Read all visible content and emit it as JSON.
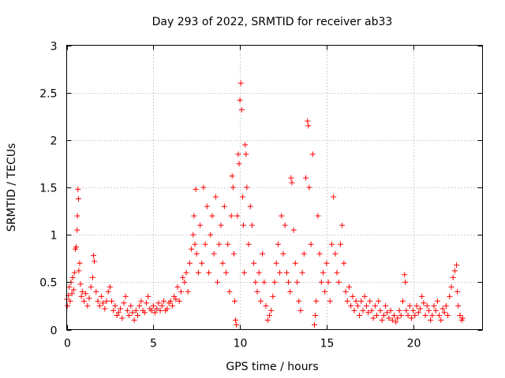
{
  "chart_data": {
    "type": "scatter",
    "title": "Day 293 of 2022, SRMTID for receiver ab33",
    "xlabel": "GPS time / hours",
    "ylabel": "SRMTID / TECUs",
    "xlim": [
      0,
      24
    ],
    "ylim": [
      0,
      3
    ],
    "xticks": [
      0,
      5,
      10,
      15,
      20
    ],
    "yticks": [
      0,
      0.5,
      1,
      1.5,
      2,
      2.5,
      3
    ],
    "xtick_labels": [
      "0",
      "5",
      "10",
      "15",
      "20"
    ],
    "ytick_labels": [
      "0",
      "0.5",
      "1",
      "1.5",
      "2",
      "2.5",
      "3"
    ],
    "grid": true,
    "marker": "+",
    "series": [
      {
        "name": "SRMTID",
        "color": "#ff0000",
        "points": [
          [
            0.0,
            0.32
          ],
          [
            0.05,
            0.25
          ],
          [
            0.1,
            0.36
          ],
          [
            0.15,
            0.45
          ],
          [
            0.2,
            0.3
          ],
          [
            0.25,
            0.5
          ],
          [
            0.3,
            0.38
          ],
          [
            0.35,
            0.55
          ],
          [
            0.4,
            0.42
          ],
          [
            0.45,
            0.6
          ],
          [
            0.5,
            0.85
          ],
          [
            0.55,
            0.87
          ],
          [
            0.6,
            1.05
          ],
          [
            0.62,
            1.2
          ],
          [
            0.65,
            1.48
          ],
          [
            0.68,
            1.38
          ],
          [
            0.7,
            0.62
          ],
          [
            0.75,
            0.7
          ],
          [
            0.8,
            0.48
          ],
          [
            0.85,
            0.35
          ],
          [
            0.9,
            0.4
          ],
          [
            1.0,
            0.3
          ],
          [
            1.1,
            0.38
          ],
          [
            1.2,
            0.25
          ],
          [
            1.3,
            0.33
          ],
          [
            1.4,
            0.45
          ],
          [
            1.5,
            0.55
          ],
          [
            1.55,
            0.78
          ],
          [
            1.6,
            0.72
          ],
          [
            1.7,
            0.4
          ],
          [
            1.8,
            0.3
          ],
          [
            1.9,
            0.25
          ],
          [
            2.0,
            0.35
          ],
          [
            2.1,
            0.28
          ],
          [
            2.2,
            0.22
          ],
          [
            2.3,
            0.3
          ],
          [
            2.4,
            0.4
          ],
          [
            2.5,
            0.45
          ],
          [
            2.6,
            0.3
          ],
          [
            2.7,
            0.2
          ],
          [
            2.8,
            0.25
          ],
          [
            2.9,
            0.15
          ],
          [
            3.0,
            0.18
          ],
          [
            3.1,
            0.22
          ],
          [
            3.2,
            0.12
          ],
          [
            3.3,
            0.28
          ],
          [
            3.4,
            0.35
          ],
          [
            3.5,
            0.2
          ],
          [
            3.6,
            0.15
          ],
          [
            3.7,
            0.25
          ],
          [
            3.8,
            0.18
          ],
          [
            3.9,
            0.1
          ],
          [
            4.0,
            0.2
          ],
          [
            4.1,
            0.15
          ],
          [
            4.2,
            0.25
          ],
          [
            4.3,
            0.3
          ],
          [
            4.4,
            0.2
          ],
          [
            4.5,
            0.18
          ],
          [
            4.6,
            0.28
          ],
          [
            4.7,
            0.35
          ],
          [
            4.8,
            0.22
          ],
          [
            4.9,
            0.2
          ],
          [
            5.0,
            0.25
          ],
          [
            5.1,
            0.18
          ],
          [
            5.2,
            0.22
          ],
          [
            5.3,
            0.28
          ],
          [
            5.4,
            0.2
          ],
          [
            5.5,
            0.25
          ],
          [
            5.6,
            0.3
          ],
          [
            5.7,
            0.2
          ],
          [
            5.8,
            0.22
          ],
          [
            5.9,
            0.28
          ],
          [
            6.0,
            0.3
          ],
          [
            6.1,
            0.25
          ],
          [
            6.2,
            0.35
          ],
          [
            6.3,
            0.32
          ],
          [
            6.4,
            0.45
          ],
          [
            6.5,
            0.3
          ],
          [
            6.6,
            0.4
          ],
          [
            6.7,
            0.55
          ],
          [
            6.8,
            0.5
          ],
          [
            6.9,
            0.6
          ],
          [
            7.0,
            0.4
          ],
          [
            7.1,
            0.7
          ],
          [
            7.2,
            0.85
          ],
          [
            7.3,
            1.0
          ],
          [
            7.35,
            1.2
          ],
          [
            7.4,
            0.9
          ],
          [
            7.45,
            1.48
          ],
          [
            7.5,
            0.8
          ],
          [
            7.6,
            0.6
          ],
          [
            7.7,
            1.1
          ],
          [
            7.8,
            0.7
          ],
          [
            7.9,
            1.5
          ],
          [
            8.0,
            0.9
          ],
          [
            8.1,
            1.3
          ],
          [
            8.2,
            0.6
          ],
          [
            8.3,
            1.0
          ],
          [
            8.4,
            1.2
          ],
          [
            8.5,
            0.8
          ],
          [
            8.6,
            1.4
          ],
          [
            8.7,
            0.5
          ],
          [
            8.8,
            0.9
          ],
          [
            8.9,
            1.1
          ],
          [
            9.0,
            0.7
          ],
          [
            9.1,
            1.3
          ],
          [
            9.2,
            0.6
          ],
          [
            9.3,
            0.9
          ],
          [
            9.4,
            0.4
          ],
          [
            9.5,
            1.2
          ],
          [
            9.55,
            1.62
          ],
          [
            9.6,
            1.5
          ],
          [
            9.65,
            0.8
          ],
          [
            9.7,
            0.3
          ],
          [
            9.75,
            0.1
          ],
          [
            9.8,
            0.05
          ],
          [
            9.85,
            1.2
          ],
          [
            9.9,
            1.85
          ],
          [
            9.95,
            1.75
          ],
          [
            10.0,
            2.42
          ],
          [
            10.05,
            2.6
          ],
          [
            10.1,
            2.32
          ],
          [
            10.15,
            1.4
          ],
          [
            10.2,
            1.1
          ],
          [
            10.25,
            0.6
          ],
          [
            10.3,
            1.95
          ],
          [
            10.35,
            1.85
          ],
          [
            10.4,
            1.5
          ],
          [
            10.5,
            0.9
          ],
          [
            10.6,
            1.3
          ],
          [
            10.7,
            1.1
          ],
          [
            10.8,
            0.7
          ],
          [
            10.9,
            0.5
          ],
          [
            11.0,
            0.4
          ],
          [
            11.1,
            0.6
          ],
          [
            11.2,
            0.3
          ],
          [
            11.3,
            0.8
          ],
          [
            11.4,
            0.5
          ],
          [
            11.5,
            0.25
          ],
          [
            11.6,
            0.1
          ],
          [
            11.7,
            0.15
          ],
          [
            11.8,
            0.2
          ],
          [
            11.9,
            0.35
          ],
          [
            12.0,
            0.5
          ],
          [
            12.1,
            0.7
          ],
          [
            12.2,
            0.9
          ],
          [
            12.3,
            0.6
          ],
          [
            12.4,
            1.2
          ],
          [
            12.5,
            0.8
          ],
          [
            12.6,
            1.1
          ],
          [
            12.7,
            0.6
          ],
          [
            12.8,
            0.5
          ],
          [
            12.9,
            0.4
          ],
          [
            12.95,
            1.6
          ],
          [
            13.0,
            1.55
          ],
          [
            13.1,
            1.05
          ],
          [
            13.2,
            0.7
          ],
          [
            13.3,
            0.5
          ],
          [
            13.4,
            0.3
          ],
          [
            13.5,
            0.2
          ],
          [
            13.6,
            0.6
          ],
          [
            13.7,
            0.8
          ],
          [
            13.8,
            1.6
          ],
          [
            13.9,
            2.2
          ],
          [
            13.95,
            2.15
          ],
          [
            14.0,
            1.5
          ],
          [
            14.1,
            0.9
          ],
          [
            14.2,
            1.85
          ],
          [
            14.3,
            0.05
          ],
          [
            14.35,
            0.15
          ],
          [
            14.4,
            0.3
          ],
          [
            14.5,
            1.2
          ],
          [
            14.6,
            0.8
          ],
          [
            14.7,
            0.5
          ],
          [
            14.8,
            0.6
          ],
          [
            14.9,
            0.4
          ],
          [
            15.0,
            0.7
          ],
          [
            15.1,
            0.5
          ],
          [
            15.2,
            0.3
          ],
          [
            15.3,
            0.9
          ],
          [
            15.4,
            1.4
          ],
          [
            15.5,
            0.8
          ],
          [
            15.6,
            0.6
          ],
          [
            15.7,
            0.5
          ],
          [
            15.8,
            0.9
          ],
          [
            15.9,
            1.1
          ],
          [
            16.0,
            0.7
          ],
          [
            16.1,
            0.4
          ],
          [
            16.2,
            0.3
          ],
          [
            16.3,
            0.45
          ],
          [
            16.4,
            0.25
          ],
          [
            16.5,
            0.35
          ],
          [
            16.6,
            0.2
          ],
          [
            16.7,
            0.3
          ],
          [
            16.8,
            0.25
          ],
          [
            16.9,
            0.15
          ],
          [
            17.0,
            0.3
          ],
          [
            17.1,
            0.2
          ],
          [
            17.2,
            0.35
          ],
          [
            17.3,
            0.25
          ],
          [
            17.4,
            0.18
          ],
          [
            17.5,
            0.3
          ],
          [
            17.6,
            0.2
          ],
          [
            17.7,
            0.12
          ],
          [
            17.8,
            0.25
          ],
          [
            17.9,
            0.15
          ],
          [
            18.0,
            0.3
          ],
          [
            18.1,
            0.2
          ],
          [
            18.2,
            0.1
          ],
          [
            18.3,
            0.15
          ],
          [
            18.4,
            0.25
          ],
          [
            18.5,
            0.18
          ],
          [
            18.6,
            0.12
          ],
          [
            18.7,
            0.2
          ],
          [
            18.8,
            0.1
          ],
          [
            18.9,
            0.15
          ],
          [
            19.0,
            0.08
          ],
          [
            19.1,
            0.12
          ],
          [
            19.2,
            0.2
          ],
          [
            19.3,
            0.15
          ],
          [
            19.4,
            0.3
          ],
          [
            19.5,
            0.58
          ],
          [
            19.55,
            0.5
          ],
          [
            19.6,
            0.2
          ],
          [
            19.7,
            0.15
          ],
          [
            19.8,
            0.25
          ],
          [
            19.9,
            0.12
          ],
          [
            20.0,
            0.2
          ],
          [
            20.1,
            0.15
          ],
          [
            20.2,
            0.25
          ],
          [
            20.3,
            0.18
          ],
          [
            20.4,
            0.22
          ],
          [
            20.5,
            0.35
          ],
          [
            20.6,
            0.28
          ],
          [
            20.7,
            0.15
          ],
          [
            20.8,
            0.25
          ],
          [
            20.9,
            0.2
          ],
          [
            21.0,
            0.1
          ],
          [
            21.1,
            0.15
          ],
          [
            21.2,
            0.25
          ],
          [
            21.3,
            0.2
          ],
          [
            21.4,
            0.3
          ],
          [
            21.5,
            0.15
          ],
          [
            21.6,
            0.1
          ],
          [
            21.7,
            0.22
          ],
          [
            21.8,
            0.18
          ],
          [
            21.9,
            0.25
          ],
          [
            22.0,
            0.15
          ],
          [
            22.1,
            0.35
          ],
          [
            22.2,
            0.45
          ],
          [
            22.3,
            0.55
          ],
          [
            22.4,
            0.62
          ],
          [
            22.5,
            0.68
          ],
          [
            22.55,
            0.4
          ],
          [
            22.6,
            0.25
          ],
          [
            22.7,
            0.15
          ],
          [
            22.8,
            0.1
          ],
          [
            22.85,
            0.12
          ]
        ]
      }
    ]
  }
}
